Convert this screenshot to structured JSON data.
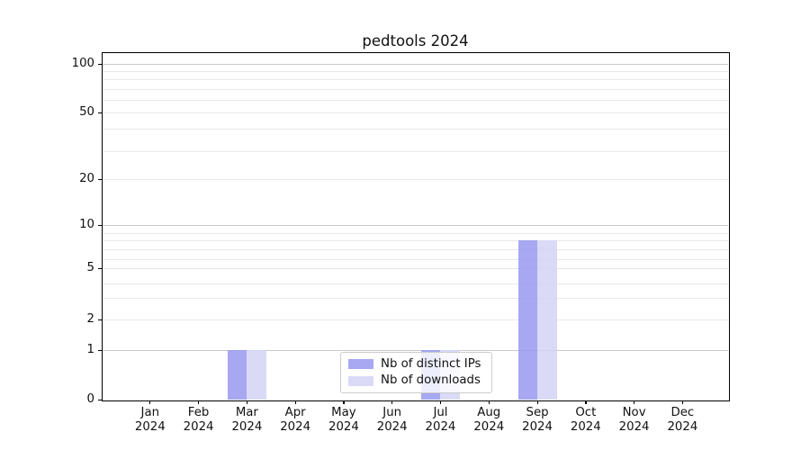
{
  "chart_data": {
    "type": "bar",
    "title": "pedtools 2024",
    "categories": [
      "Jan",
      "Feb",
      "Mar",
      "Apr",
      "May",
      "Jun",
      "Jul",
      "Aug",
      "Sep",
      "Oct",
      "Nov",
      "Dec"
    ],
    "x_tick_year": "2024",
    "series": [
      {
        "name": "Nb of distinct IPs",
        "color": "#9898f0",
        "values": [
          0,
          0,
          1,
          0,
          0,
          0,
          1,
          0,
          8,
          0,
          0,
          0
        ]
      },
      {
        "name": "Nb of downloads",
        "color": "#d4d4f6",
        "values": [
          0,
          0,
          1,
          0,
          0,
          0,
          1,
          0,
          8,
          0,
          0,
          0
        ]
      }
    ],
    "yscale": "log-like",
    "yticks": [
      0,
      1,
      2,
      5,
      10,
      20,
      50,
      100
    ],
    "ylim": [
      0,
      120
    ],
    "grid": "horizontal major+minor",
    "legend": {
      "position": "inside-bottom-center",
      "items": [
        "Nb of distinct IPs",
        "Nb of downloads"
      ]
    }
  }
}
